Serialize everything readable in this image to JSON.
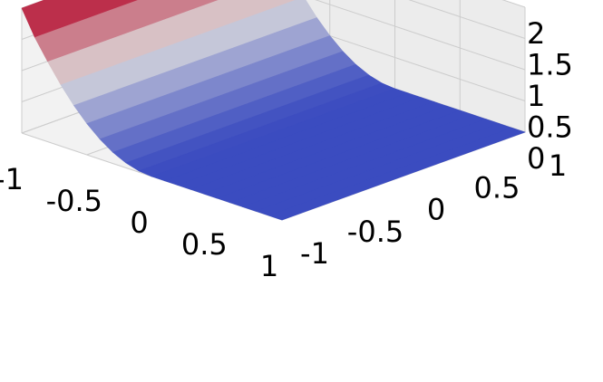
{
  "chart_data": {
    "type": "surface",
    "title": "",
    "xlabel": "",
    "ylabel": "",
    "zlabel": "",
    "xlim": [
      -1,
      1
    ],
    "ylim": [
      -1,
      1
    ],
    "zlim": [
      0,
      2
    ],
    "x_ticks": [
      "-1",
      "-0.5",
      "0",
      "0.5",
      "1"
    ],
    "y_ticks": [
      "-1",
      "-0.5",
      "0",
      "0.5",
      "1"
    ],
    "z_ticks": [
      "0",
      "0.5",
      "1",
      "1.5",
      "2"
    ],
    "grid": true,
    "colormap": "coolwarm",
    "surface": {
      "x": [
        -1,
        -0.9,
        -0.8,
        -0.7,
        -0.6,
        -0.5,
        -0.4,
        -0.3,
        -0.2,
        -0.1,
        0,
        0.1,
        0.2,
        0.3,
        0.4,
        0.5,
        0.6,
        0.7,
        0.8,
        0.9,
        1
      ],
      "y_range": [
        -1,
        1
      ],
      "z": [
        2.0,
        1.6,
        1.28,
        0.98,
        0.72,
        0.5,
        0.32,
        0.18,
        0.08,
        0.02,
        0,
        0,
        0,
        0,
        0,
        0,
        0,
        0,
        0,
        0,
        0
      ]
    },
    "colors": {
      "pane": "#f2f2f2",
      "grid": "#cccccc",
      "low": "#3b4cc0",
      "mid": "#dddddd",
      "high": "#b40426"
    }
  }
}
